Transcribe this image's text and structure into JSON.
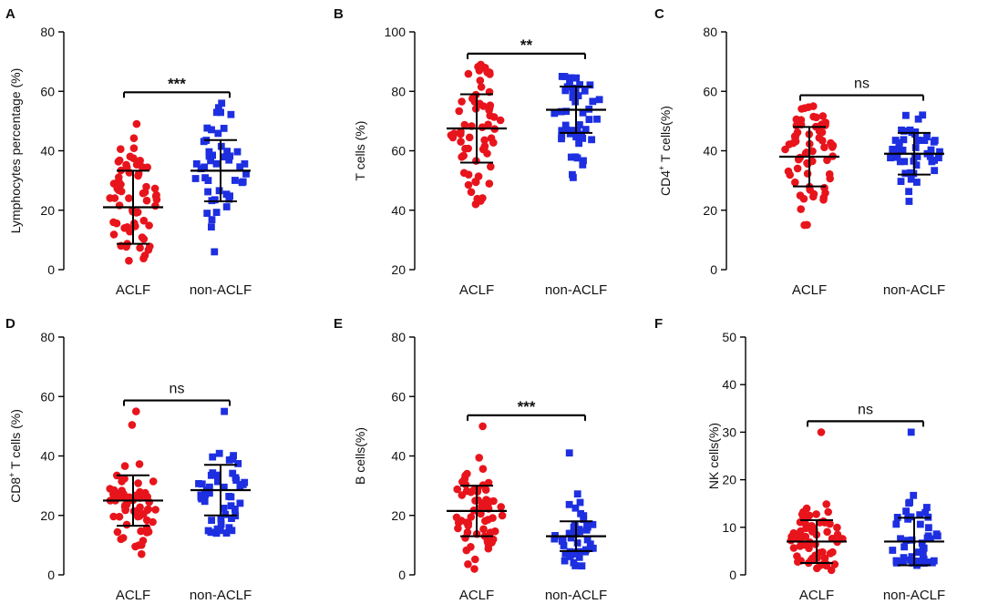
{
  "figure": {
    "colors": {
      "ACLF": "#e8141c",
      "non-ACLF": "#1d2fe0",
      "axis": "#000000"
    }
  },
  "chart_data": [
    {
      "panel": "A",
      "type": "scatter",
      "ylabel": "Lymphocytes percentage (%)",
      "ylabel_parts": [
        {
          "t": "Lymphocytes percentage (%)"
        }
      ],
      "ylim": [
        0,
        80
      ],
      "yticks": [
        "0",
        "20",
        "40",
        "60",
        "80"
      ],
      "categories": [
        "ACLF",
        "non-ACLF"
      ],
      "significance": "***",
      "series": [
        {
          "name": "ACLF",
          "mean": 21,
          "sd": 12.3,
          "n": 64,
          "min": 3,
          "max": 49
        },
        {
          "name": "non-ACLF",
          "mean": 33.3,
          "sd": 10.3,
          "n": 48,
          "min": 6,
          "max": 56
        }
      ]
    },
    {
      "panel": "B",
      "type": "scatter",
      "ylabel": "T cells (%)",
      "ylabel_parts": [
        {
          "t": "T cells (%)"
        }
      ],
      "ylim": [
        20,
        100
      ],
      "yticks": [
        "20",
        "40",
        "60",
        "80",
        "100"
      ],
      "categories": [
        "ACLF",
        "non-ACLF"
      ],
      "significance": "**",
      "series": [
        {
          "name": "ACLF",
          "mean": 67.5,
          "sd": 11.5,
          "n": 64,
          "min": 42,
          "max": 89
        },
        {
          "name": "non-ACLF",
          "mean": 73.8,
          "sd": 7.8,
          "n": 48,
          "min": 51,
          "max": 85
        }
      ]
    },
    {
      "panel": "C",
      "type": "scatter",
      "ylabel": "CD4+ T cells(%)",
      "ylabel_parts": [
        {
          "t": "CD4"
        },
        {
          "t": "+",
          "sup": true
        },
        {
          "t": " T cells(%)"
        }
      ],
      "ylim": [
        0,
        80
      ],
      "yticks": [
        "0",
        "20",
        "40",
        "60",
        "80"
      ],
      "categories": [
        "ACLF",
        "non-ACLF"
      ],
      "significance": "ns",
      "series": [
        {
          "name": "ACLF",
          "mean": 38,
          "sd": 10,
          "n": 64,
          "min": 15,
          "max": 55
        },
        {
          "name": "non-ACLF",
          "mean": 39,
          "sd": 7,
          "n": 48,
          "min": 23,
          "max": 52
        }
      ]
    },
    {
      "panel": "D",
      "type": "scatter",
      "ylabel": "CD8+ T cells (%)",
      "ylabel_parts": [
        {
          "t": "CD8"
        },
        {
          "t": "+",
          "sup": true
        },
        {
          "t": " T cells (%)"
        }
      ],
      "ylim": [
        0,
        80
      ],
      "yticks": [
        "0",
        "20",
        "40",
        "60",
        "80"
      ],
      "categories": [
        "ACLF",
        "non-ACLF"
      ],
      "significance": "ns",
      "series": [
        {
          "name": "ACLF",
          "mean": 25,
          "sd": 8.5,
          "n": 64,
          "min": 7,
          "max": 55
        },
        {
          "name": "non-ACLF",
          "mean": 28.5,
          "sd": 8.5,
          "n": 48,
          "min": 14,
          "max": 55
        }
      ]
    },
    {
      "panel": "E",
      "type": "scatter",
      "ylabel": "B cells(%)",
      "ylabel_parts": [
        {
          "t": "B cells(%)"
        }
      ],
      "ylim": [
        0,
        80
      ],
      "yticks": [
        "0",
        "20",
        "40",
        "60",
        "80"
      ],
      "categories": [
        "ACLF",
        "non-ACLF"
      ],
      "significance": "***",
      "series": [
        {
          "name": "ACLF",
          "mean": 21.5,
          "sd": 8.5,
          "n": 64,
          "min": 2,
          "max": 50
        },
        {
          "name": "non-ACLF",
          "mean": 13,
          "sd": 5,
          "n": 48,
          "min": 3,
          "max": 41
        }
      ]
    },
    {
      "panel": "F",
      "type": "scatter",
      "ylabel": "NK cells(%)",
      "ylabel_parts": [
        {
          "t": "NK cells(%)"
        }
      ],
      "ylim": [
        0,
        50
      ],
      "yticks": [
        "0",
        "10",
        "20",
        "30",
        "40",
        "50"
      ],
      "categories": [
        "ACLF",
        "non-ACLF"
      ],
      "significance": "ns",
      "series": [
        {
          "name": "ACLF",
          "mean": 7,
          "sd": 4.5,
          "n": 64,
          "min": 1,
          "max": 30
        },
        {
          "name": "non-ACLF",
          "mean": 7,
          "sd": 5,
          "n": 48,
          "min": 2,
          "max": 30
        }
      ]
    }
  ]
}
